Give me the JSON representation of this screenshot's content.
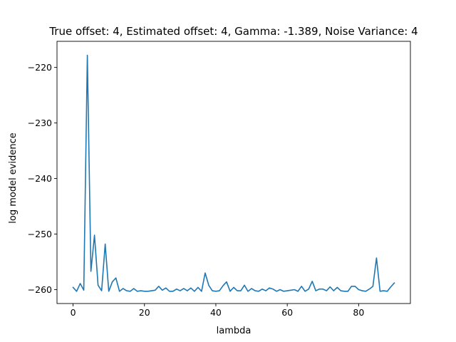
{
  "chart_data": {
    "type": "line",
    "title": "True offset: 4, Estimated offset: 4, Gamma: -1.389, Noise Variance: 4",
    "xlabel": "lambda",
    "ylabel": "log model evidence",
    "xlim": [
      -4.5,
      94.5
    ],
    "ylim": [
      -262.5,
      -215.3
    ],
    "xticks": [
      0,
      20,
      40,
      60,
      80
    ],
    "xtick_labels": [
      "0",
      "20",
      "40",
      "60",
      "80"
    ],
    "yticks": [
      -260,
      -250,
      -240,
      -230,
      -220
    ],
    "ytick_labels": [
      "−260",
      "−250",
      "−240",
      "−230",
      "−220"
    ],
    "grid": false,
    "legend": "none",
    "series": [
      {
        "color": "#1f77b4",
        "x": [
          0,
          1,
          2,
          3,
          4,
          5,
          6,
          7,
          8,
          9,
          10,
          11,
          12,
          13,
          14,
          15,
          16,
          17,
          18,
          19,
          20,
          21,
          22,
          23,
          24,
          25,
          26,
          27,
          28,
          29,
          30,
          31,
          32,
          33,
          34,
          35,
          36,
          37,
          38,
          39,
          40,
          41,
          42,
          43,
          44,
          45,
          46,
          47,
          48,
          49,
          50,
          51,
          52,
          53,
          54,
          55,
          56,
          57,
          58,
          59,
          60,
          61,
          62,
          63,
          64,
          65,
          66,
          67,
          68,
          69,
          70,
          71,
          72,
          73,
          74,
          75,
          76,
          77,
          78,
          79,
          80,
          81,
          82,
          83,
          84,
          85,
          86,
          87,
          88,
          89,
          90
        ],
        "y": [
          -259.6,
          -260.3,
          -258.9,
          -260.1,
          -217.8,
          -256.7,
          -250.2,
          -259.2,
          -260.2,
          -251.8,
          -260.3,
          -258.6,
          -257.9,
          -260.3,
          -259.8,
          -260.2,
          -260.3,
          -259.8,
          -260.3,
          -260.2,
          -260.3,
          -260.3,
          -260.2,
          -260.1,
          -259.4,
          -260.1,
          -259.7,
          -260.3,
          -260.3,
          -259.9,
          -260.2,
          -259.8,
          -260.2,
          -259.7,
          -260.3,
          -259.6,
          -260.3,
          -257.0,
          -259.2,
          -260.2,
          -260.3,
          -260.2,
          -259.3,
          -258.6,
          -260.3,
          -259.6,
          -260.2,
          -260.2,
          -259.2,
          -260.3,
          -259.8,
          -260.2,
          -260.3,
          -259.9,
          -260.2,
          -259.7,
          -259.9,
          -260.3,
          -260.0,
          -260.3,
          -260.2,
          -260.1,
          -260.0,
          -260.3,
          -259.4,
          -260.3,
          -259.9,
          -258.5,
          -260.2,
          -259.9,
          -259.9,
          -260.2,
          -259.5,
          -260.2,
          -259.6,
          -260.2,
          -260.3,
          -260.3,
          -259.4,
          -259.4,
          -260.0,
          -260.2,
          -260.3,
          -259.9,
          -259.4,
          -254.3,
          -260.3,
          -260.2,
          -260.3,
          -259.5,
          -258.8
        ]
      }
    ]
  }
}
